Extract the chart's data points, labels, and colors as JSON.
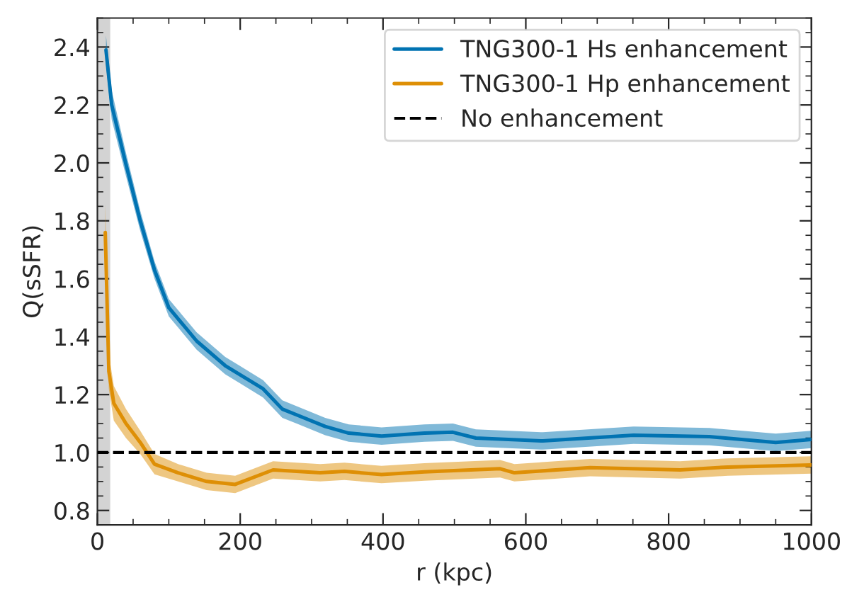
{
  "chart_data": {
    "type": "line",
    "xlabel": "r (kpc)",
    "ylabel": "Q(sSFR)",
    "series": [
      {
        "name": "TNG300-1 Hs enhancement",
        "color": "#0173b2",
        "x": [
          12,
          20,
          40,
          60,
          80,
          100,
          139,
          179,
          199,
          232,
          259,
          279,
          319,
          352,
          398,
          458,
          498,
          530,
          624,
          751,
          857,
          950,
          1000
        ],
        "values": [
          2.39,
          2.2,
          1.995,
          1.8,
          1.63,
          1.5,
          1.385,
          1.3,
          1.27,
          1.22,
          1.15,
          1.13,
          1.09,
          1.067,
          1.057,
          1.067,
          1.07,
          1.05,
          1.04,
          1.06,
          1.055,
          1.035,
          1.045
        ],
        "lower": [
          2.34,
          2.15,
          1.955,
          1.765,
          1.6,
          1.47,
          1.355,
          1.27,
          1.24,
          1.19,
          1.12,
          1.1,
          1.06,
          1.037,
          1.027,
          1.037,
          1.04,
          1.02,
          1.01,
          1.03,
          1.025,
          1.005,
          1.015
        ],
        "upper": [
          2.44,
          2.25,
          2.035,
          1.835,
          1.66,
          1.53,
          1.415,
          1.33,
          1.3,
          1.25,
          1.18,
          1.16,
          1.12,
          1.097,
          1.087,
          1.097,
          1.1,
          1.08,
          1.07,
          1.09,
          1.085,
          1.065,
          1.075
        ]
      },
      {
        "name": "TNG300-1 Hp enhancement",
        "color": "#de8f05",
        "x": [
          11,
          13,
          16,
          23,
          40,
          60,
          80,
          113,
          153,
          193,
          246,
          312,
          346,
          398,
          458,
          564,
          584,
          690,
          816,
          883,
          1000
        ],
        "values": [
          1.76,
          1.57,
          1.28,
          1.17,
          1.1,
          1.035,
          0.96,
          0.93,
          0.9,
          0.89,
          0.94,
          0.93,
          0.935,
          0.924,
          0.933,
          0.944,
          0.93,
          0.948,
          0.94,
          0.95,
          0.957
        ],
        "lower": [
          1.66,
          1.5,
          1.22,
          1.11,
          1.05,
          0.995,
          0.925,
          0.9,
          0.87,
          0.86,
          0.91,
          0.9,
          0.905,
          0.894,
          0.903,
          0.914,
          0.9,
          0.918,
          0.91,
          0.92,
          0.927
        ],
        "upper": [
          1.86,
          1.64,
          1.34,
          1.23,
          1.15,
          1.075,
          0.995,
          0.96,
          0.93,
          0.92,
          0.97,
          0.96,
          0.965,
          0.954,
          0.963,
          0.974,
          0.96,
          0.978,
          0.97,
          0.98,
          0.987
        ]
      }
    ],
    "ref_lines": [
      {
        "axis": "y",
        "value": 1.0,
        "label": "No enhancement",
        "color": "#000000",
        "line_style": "dashed"
      }
    ],
    "bands": [
      {
        "axis": "x",
        "from": 0,
        "to": 18,
        "color": "#d3d3d3"
      }
    ],
    "xlim": [
      0,
      1000
    ],
    "xticks": [
      0,
      200,
      400,
      600,
      800,
      1000
    ],
    "ylim": [
      0.75,
      2.5
    ],
    "yticks": [
      0.8,
      {
        "value": 1.0,
        "label": "1.0"
      },
      1.2,
      1.4,
      1.6,
      1.8,
      {
        "value": 2.0,
        "label": "2.0"
      },
      2.2,
      2.4
    ],
    "grid": false,
    "legend": "top right",
    "line_style": "solid",
    "marker": "none"
  }
}
